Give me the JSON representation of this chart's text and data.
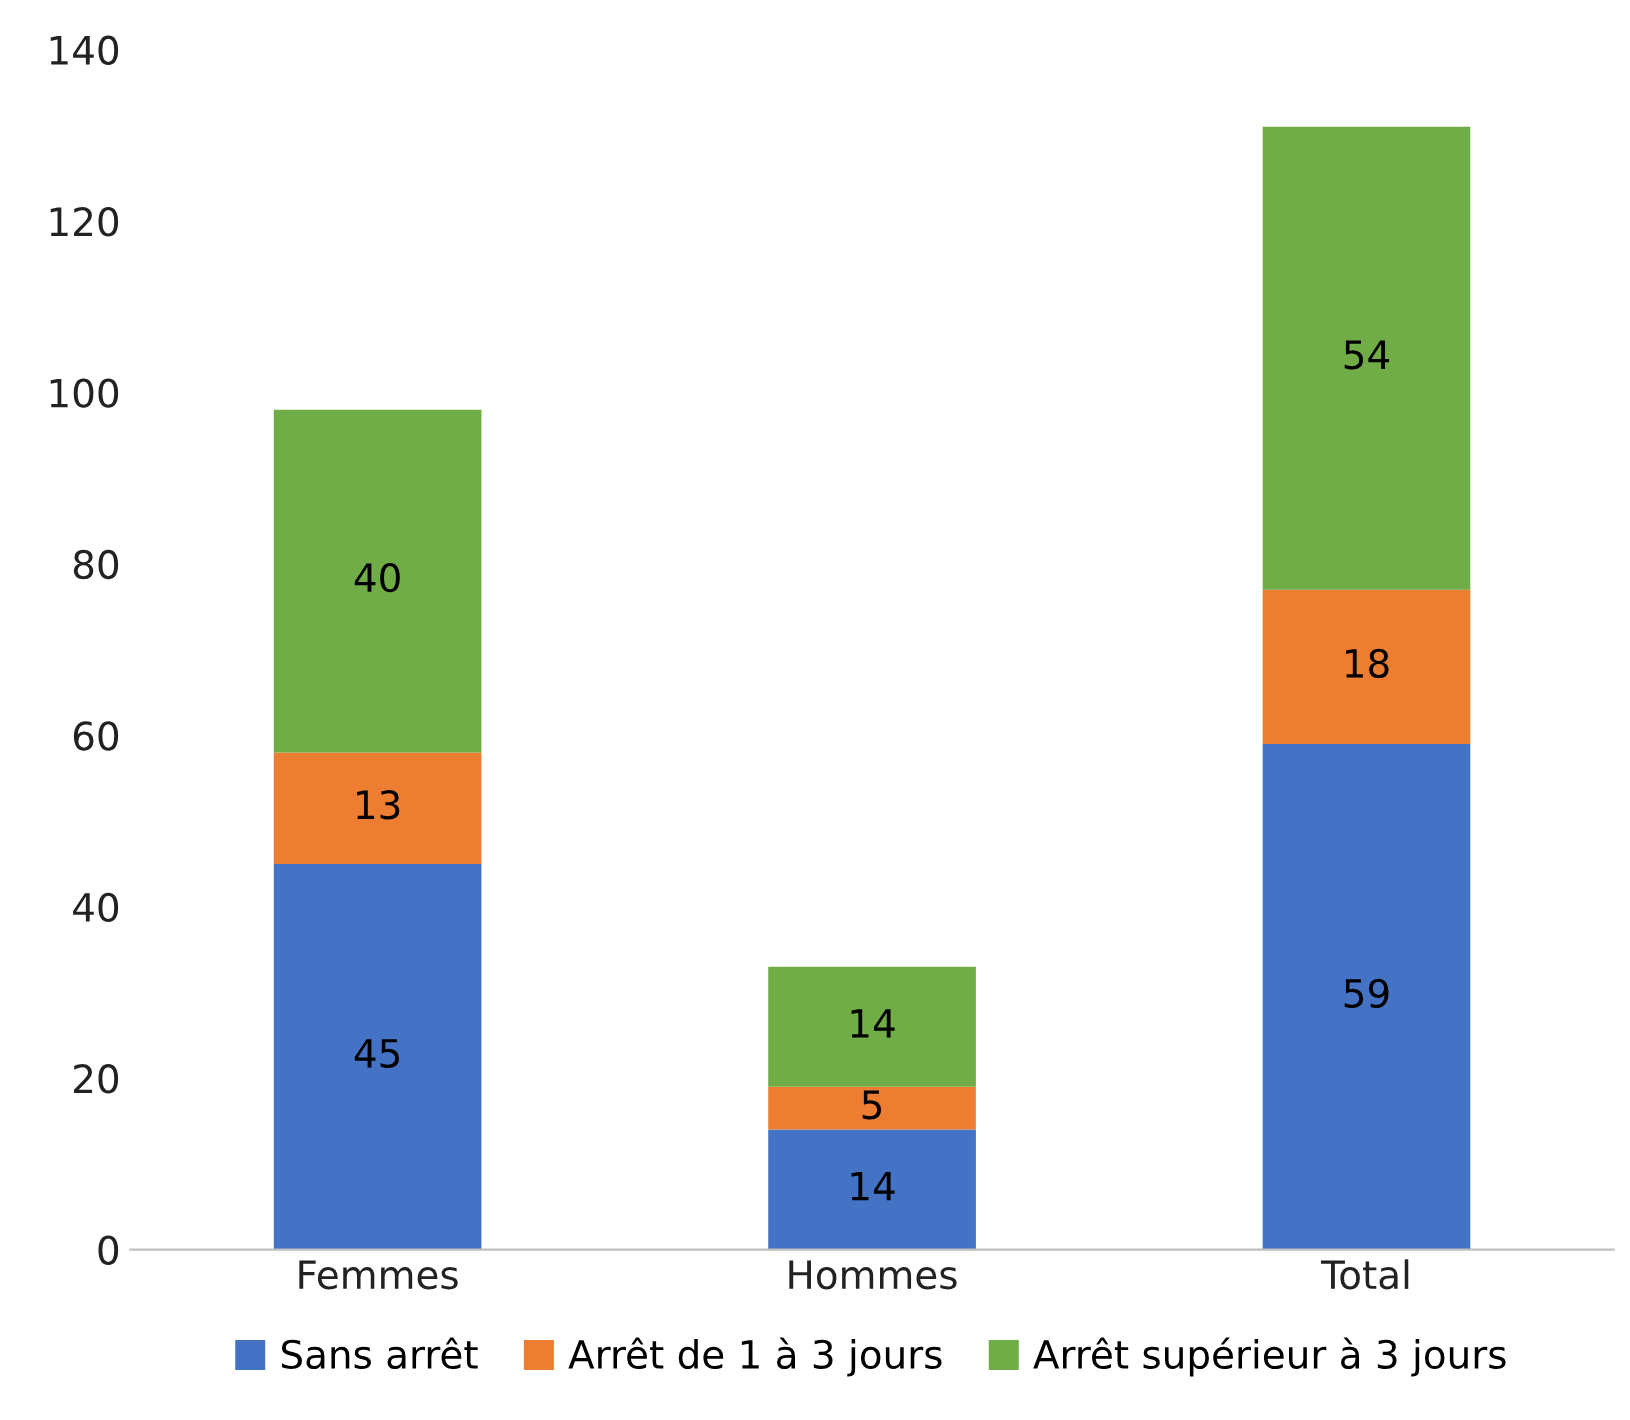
{
  "chart_data": {
    "type": "bar",
    "stacked": true,
    "categories": [
      "Femmes",
      "Hommes",
      "Total"
    ],
    "series": [
      {
        "name": "Sans arrêt",
        "color": "#4472c4",
        "values": [
          45,
          14,
          59
        ]
      },
      {
        "name": "Arrêt de 1 à 3 jours",
        "color": "#ed7d31",
        "values": [
          13,
          5,
          18
        ]
      },
      {
        "name": "Arrêt supérieur à 3 jours",
        "color": "#70ad47",
        "values": [
          40,
          14,
          54
        ]
      }
    ],
    "ylim": [
      0,
      140
    ],
    "yticks": [
      0,
      20,
      40,
      60,
      80,
      100,
      120,
      140
    ],
    "grid": false,
    "legend": "bottom",
    "data_labels": true
  }
}
